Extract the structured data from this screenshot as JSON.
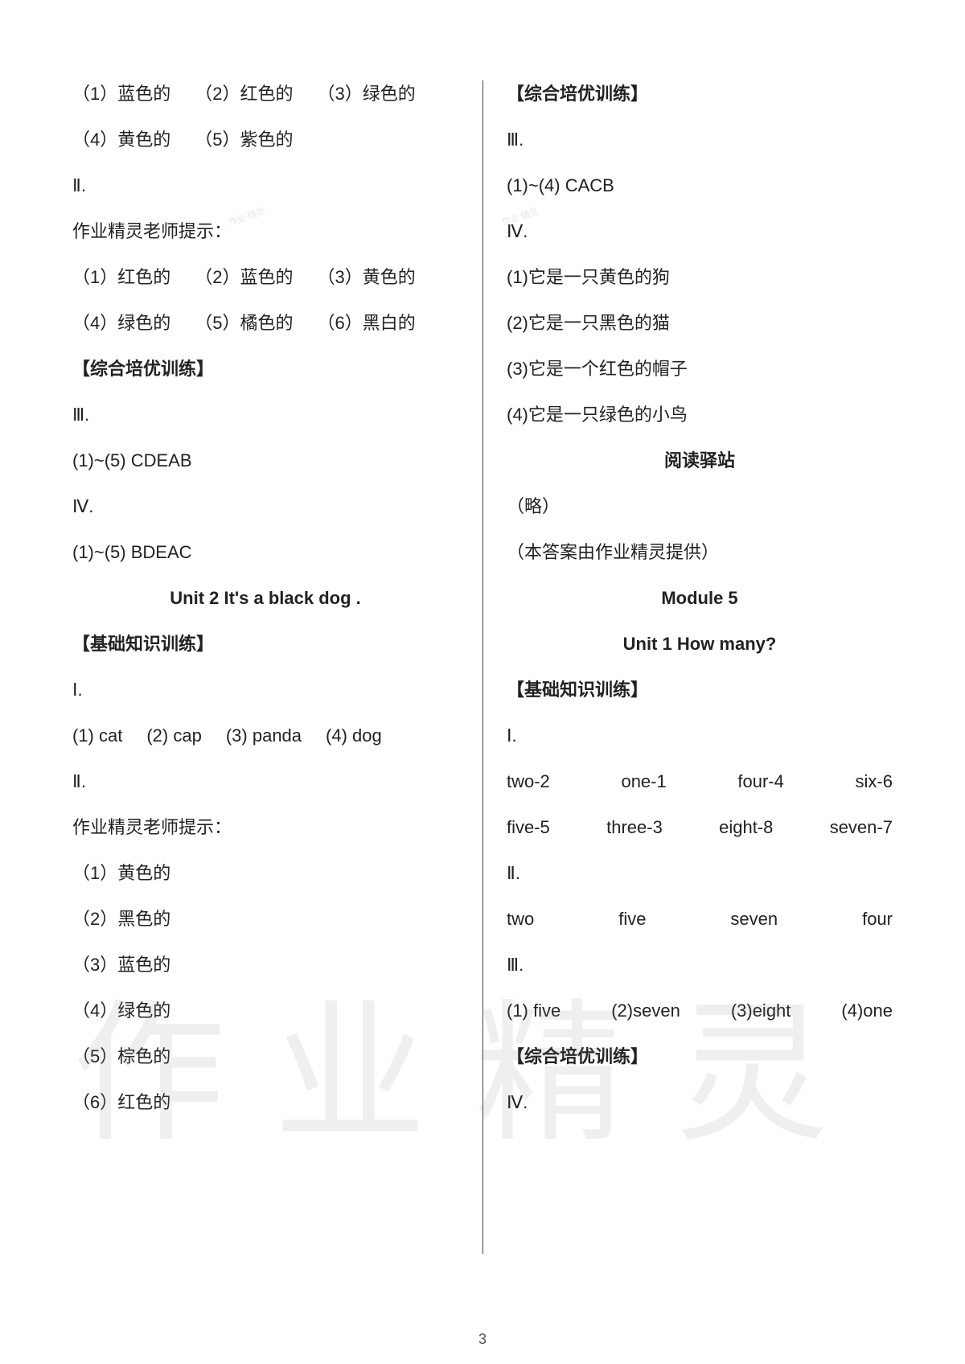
{
  "pageNumber": "3",
  "watermark": "作业精灵",
  "stamp": "作业\n精灵",
  "left": {
    "row1": {
      "i1": "（1）蓝色的",
      "i2": "（2）红色的",
      "i3": "（3）绿色的"
    },
    "row2": {
      "i1": "（4）黄色的",
      "i2": "（5）紫色的"
    },
    "sec2": "Ⅱ.",
    "hint": "作业精灵老师提示：",
    "row3": {
      "i1": "（1）红色的",
      "i2": "（2）蓝色的",
      "i3": "（3）黄色的"
    },
    "row4": {
      "i1": "（4）绿色的",
      "i2": "（5）橘色的",
      "i3": "（6）黑白的"
    },
    "adv": "【综合培优训练】",
    "sec3": "Ⅲ.",
    "ans3": "(1)~(5) CDEAB",
    "sec4": "Ⅳ.",
    "ans4": "(1)~(5) BDEAC",
    "unit2": "Unit 2 It's a black dog .",
    "basic": "【基础知识训练】",
    "sec1b": "Ⅰ.",
    "row5": {
      "i1": "(1) cat",
      "i2": "(2) cap",
      "i3": "(3) panda",
      "i4": "(4) dog"
    },
    "sec2b": "Ⅱ.",
    "hint2": "作业精灵老师提示：",
    "c1": "（1）黄色的",
    "c2": "（2）黑色的",
    "c3": "（3）蓝色的",
    "c4": "（4）绿色的",
    "c5": "（5）棕色的",
    "c6": "（6）红色的"
  },
  "right": {
    "adv": "【综合培优训练】",
    "sec3": "Ⅲ.",
    "ans3": "(1)~(4) CACB",
    "sec4": "Ⅳ.",
    "t1": "(1)它是一只黄色的狗",
    "t2": "(2)它是一只黑色的猫",
    "t3": "(3)它是一个红色的帽子",
    "t4": "(4)它是一只绿色的小鸟",
    "reading": "阅读驿站",
    "omit": "（略）",
    "credit": "（本答案由作业精灵提供）",
    "mod5": "Module 5",
    "unit1": "Unit 1 How many?",
    "basic": "【基础知识训练】",
    "sec1": "Ⅰ.",
    "nrow1": {
      "i1": "two-2",
      "i2": "one-1",
      "i3": "four-4",
      "i4": "six-6"
    },
    "nrow2": {
      "i1": "five-5",
      "i2": "three-3",
      "i3": "eight-8",
      "i4": "seven-7"
    },
    "sec2": "Ⅱ.",
    "nrow3": {
      "i1": "two",
      "i2": "five",
      "i3": "seven",
      "i4": "four"
    },
    "sec3b": "Ⅲ.",
    "nrow4": {
      "i1": "(1) five",
      "i2": "(2)seven",
      "i3": "(3)eight",
      "i4": "(4)one"
    },
    "adv2": "【综合培优训练】",
    "sec4b": "Ⅳ."
  }
}
